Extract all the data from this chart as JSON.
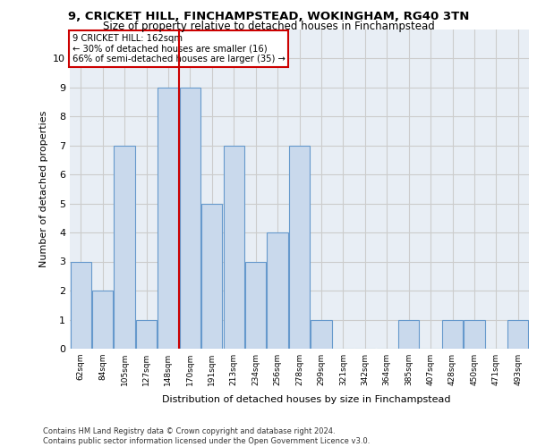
{
  "title1": "9, CRICKET HILL, FINCHAMPSTEAD, WOKINGHAM, RG40 3TN",
  "title2": "Size of property relative to detached houses in Finchampstead",
  "xlabel": "Distribution of detached houses by size in Finchampstead",
  "ylabel": "Number of detached properties",
  "categories": [
    "62sqm",
    "84sqm",
    "105sqm",
    "127sqm",
    "148sqm",
    "170sqm",
    "191sqm",
    "213sqm",
    "234sqm",
    "256sqm",
    "278sqm",
    "299sqm",
    "321sqm",
    "342sqm",
    "364sqm",
    "385sqm",
    "407sqm",
    "428sqm",
    "450sqm",
    "471sqm",
    "493sqm"
  ],
  "values": [
    3,
    2,
    7,
    1,
    9,
    9,
    5,
    7,
    3,
    4,
    7,
    1,
    0,
    0,
    0,
    1,
    0,
    1,
    1,
    0,
    1
  ],
  "bar_color": "#c9d9ec",
  "bar_edge_color": "#6699cc",
  "vline_x": 5,
  "vline_color": "#cc0000",
  "annotation_text": "9 CRICKET HILL: 162sqm\n← 30% of detached houses are smaller (16)\n66% of semi-detached houses are larger (35) →",
  "annotation_box_color": "#ffffff",
  "annotation_box_edge": "#cc0000",
  "ylim": [
    0,
    11
  ],
  "yticks": [
    0,
    1,
    2,
    3,
    4,
    5,
    6,
    7,
    8,
    9,
    10,
    11
  ],
  "grid_color": "#cccccc",
  "bg_color": "#e8eef5",
  "footer": "Contains HM Land Registry data © Crown copyright and database right 2024.\nContains public sector information licensed under the Open Government Licence v3.0."
}
